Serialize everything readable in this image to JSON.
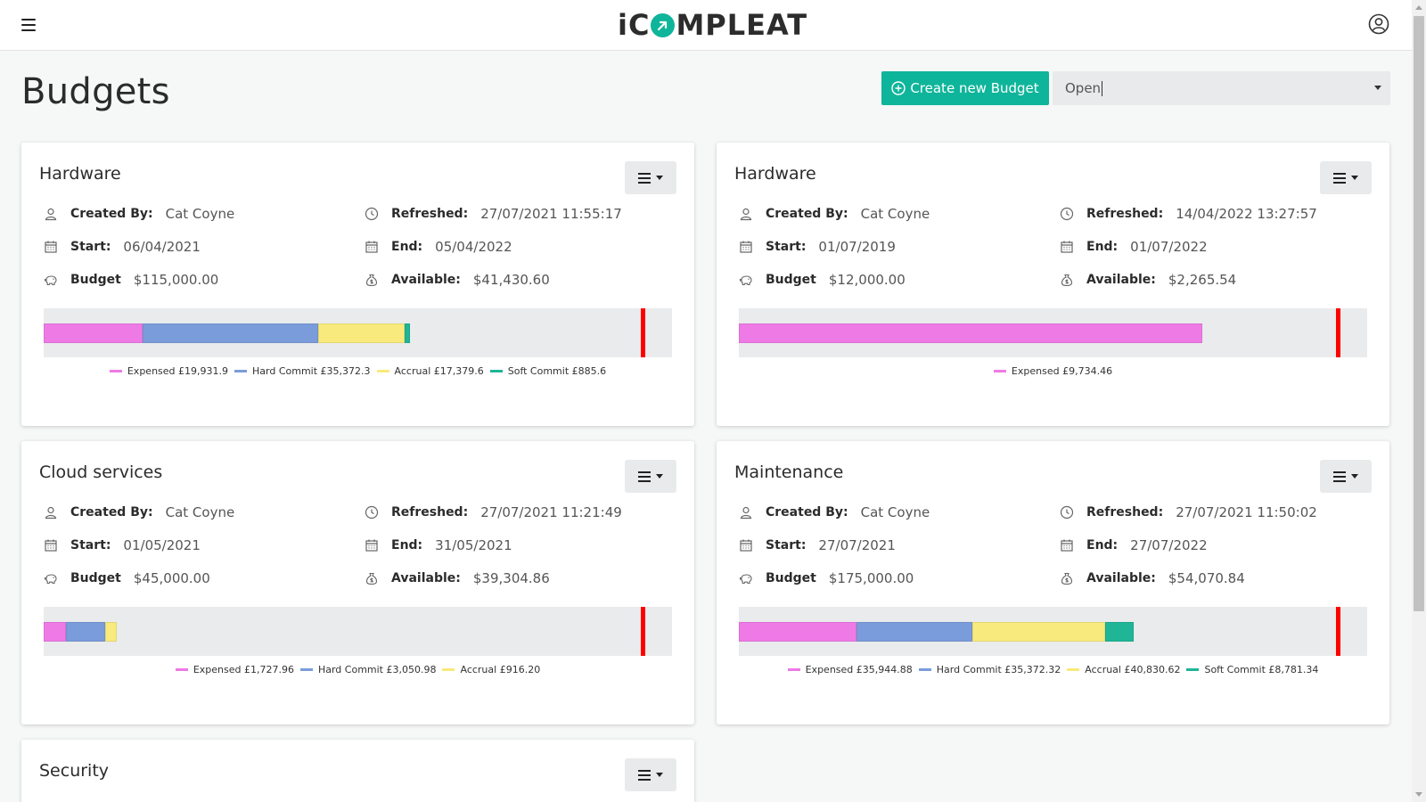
{
  "app": {
    "brand_prefix": "iC",
    "brand_suffix": "MPLEAT"
  },
  "colors": {
    "accent": "#0fb59a",
    "expensed": "#ee7ae6",
    "hard_commit": "#7b9cdb",
    "accrual": "#f8ea7c",
    "soft_commit": "#1fb596",
    "limit": "#ff0000"
  },
  "header": {
    "title": "Budgets",
    "create_label": "Create new Budget",
    "status_value": "Open"
  },
  "labels": {
    "created_by": "Created By:",
    "refreshed": "Refreshed:",
    "start": "Start:",
    "end": "End:",
    "budget": "Budget",
    "available": "Available:"
  },
  "cards": [
    {
      "title": "Hardware",
      "created_by": "Cat Coyne",
      "refreshed": "27/07/2021 11:55:17",
      "start": "06/04/2021",
      "end": "05/04/2022",
      "budget": "$115,000.00",
      "available": "$41,430.60",
      "bar_limit_fraction": 0.95,
      "segments": [
        {
          "key": "expensed",
          "fraction": 0.157,
          "legend": "Expensed £19,931.9"
        },
        {
          "key": "hard_commit",
          "fraction": 0.28,
          "legend": "Hard Commit £35,372.3"
        },
        {
          "key": "accrual",
          "fraction": 0.137,
          "legend": "Accrual £17,379.6"
        },
        {
          "key": "soft_commit",
          "fraction": 0.008,
          "legend": "Soft Commit £885.6"
        }
      ]
    },
    {
      "title": "Hardware",
      "created_by": "Cat Coyne",
      "refreshed": "14/04/2022 13:27:57",
      "start": "01/07/2019",
      "end": "01/07/2022",
      "budget": "$12,000.00",
      "available": "$2,265.54",
      "bar_limit_fraction": 0.95,
      "segments": [
        {
          "key": "expensed",
          "fraction": 0.737,
          "legend": "Expensed £9,734.46"
        }
      ]
    },
    {
      "title": "Cloud services",
      "created_by": "Cat Coyne",
      "refreshed": "27/07/2021 11:21:49",
      "start": "01/05/2021",
      "end": "31/05/2021",
      "budget": "$45,000.00",
      "available": "$39,304.86",
      "bar_limit_fraction": 0.95,
      "segments": [
        {
          "key": "expensed",
          "fraction": 0.036,
          "legend": "Expensed £1,727.96"
        },
        {
          "key": "hard_commit",
          "fraction": 0.063,
          "legend": "Hard Commit £3,050.98"
        },
        {
          "key": "accrual",
          "fraction": 0.019,
          "legend": "Accrual £916.20"
        }
      ]
    },
    {
      "title": "Maintenance",
      "created_by": "Cat Coyne",
      "refreshed": "27/07/2021 11:50:02",
      "start": "27/07/2021",
      "end": "27/07/2022",
      "budget": "$175,000.00",
      "available": "$54,070.84",
      "bar_limit_fraction": 0.95,
      "segments": [
        {
          "key": "expensed",
          "fraction": 0.187,
          "legend": "Expensed £35,944.88"
        },
        {
          "key": "hard_commit",
          "fraction": 0.184,
          "legend": "Hard Commit £35,372.32"
        },
        {
          "key": "accrual",
          "fraction": 0.211,
          "legend": "Accrual £40,830.62"
        },
        {
          "key": "soft_commit",
          "fraction": 0.045,
          "legend": "Soft Commit £8,781.34"
        }
      ]
    },
    {
      "title": "Security"
    }
  ]
}
